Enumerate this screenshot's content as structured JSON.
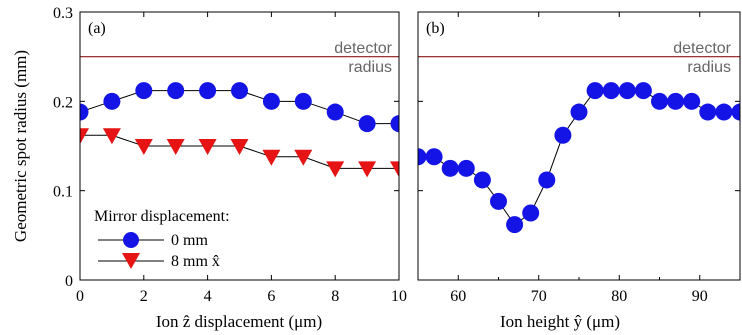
{
  "chart_data": [
    {
      "type": "line",
      "panel_label": "(a)",
      "xlabel": "Ion ẑ displacement (μm)",
      "ylabel": "Geometric spot radius (mm)",
      "xlim": [
        0,
        10
      ],
      "ylim": [
        0,
        0.3
      ],
      "xticks": [
        "0",
        "2",
        "4",
        "6",
        "8",
        "10"
      ],
      "yticks": [
        "0",
        "0.1",
        "0.2",
        "0.3"
      ],
      "reference_line": {
        "y": 0.25,
        "label_top": "detector",
        "label_bottom": "radius",
        "color": "#8b1a1a"
      },
      "legend": {
        "title": "Mirror displacement:",
        "placement": "bottom-left"
      },
      "series": [
        {
          "name": "0 mm",
          "marker": "circle",
          "color": "#1414e6",
          "x": [
            0,
            1,
            2,
            3,
            4,
            5,
            6,
            7,
            8,
            9,
            10
          ],
          "y": [
            0.188,
            0.2,
            0.212,
            0.212,
            0.212,
            0.212,
            0.2,
            0.2,
            0.188,
            0.175,
            0.175
          ]
        },
        {
          "name": "8 mm x̂",
          "marker": "triangle-down",
          "color": "#e61414",
          "x": [
            0,
            1,
            2,
            3,
            4,
            5,
            6,
            7,
            8,
            9,
            10
          ],
          "y": [
            0.162,
            0.162,
            0.15,
            0.15,
            0.15,
            0.15,
            0.138,
            0.138,
            0.125,
            0.125,
            0.125
          ]
        }
      ]
    },
    {
      "type": "line",
      "panel_label": "(b)",
      "xlabel": "Ion height ŷ (μm)",
      "ylabel": "",
      "xlim": [
        55,
        95
      ],
      "ylim": [
        0,
        0.3
      ],
      "xticks": [
        "60",
        "70",
        "80",
        "90"
      ],
      "yticks": [],
      "reference_line": {
        "y": 0.25,
        "label_top": "detector",
        "label_bottom": "radius",
        "color": "#8b1a1a"
      },
      "series": [
        {
          "marker": "circle",
          "color": "#1414e6",
          "x": [
            55,
            57,
            59,
            61,
            63,
            65,
            67,
            69,
            71,
            73,
            75,
            77,
            79,
            81,
            83,
            85,
            87,
            89,
            91,
            93,
            95
          ],
          "y": [
            0.138,
            0.138,
            0.125,
            0.125,
            0.112,
            0.088,
            0.062,
            0.075,
            0.112,
            0.162,
            0.188,
            0.212,
            0.212,
            0.212,
            0.212,
            0.2,
            0.2,
            0.2,
            0.188,
            0.188,
            0.188
          ]
        }
      ]
    }
  ]
}
